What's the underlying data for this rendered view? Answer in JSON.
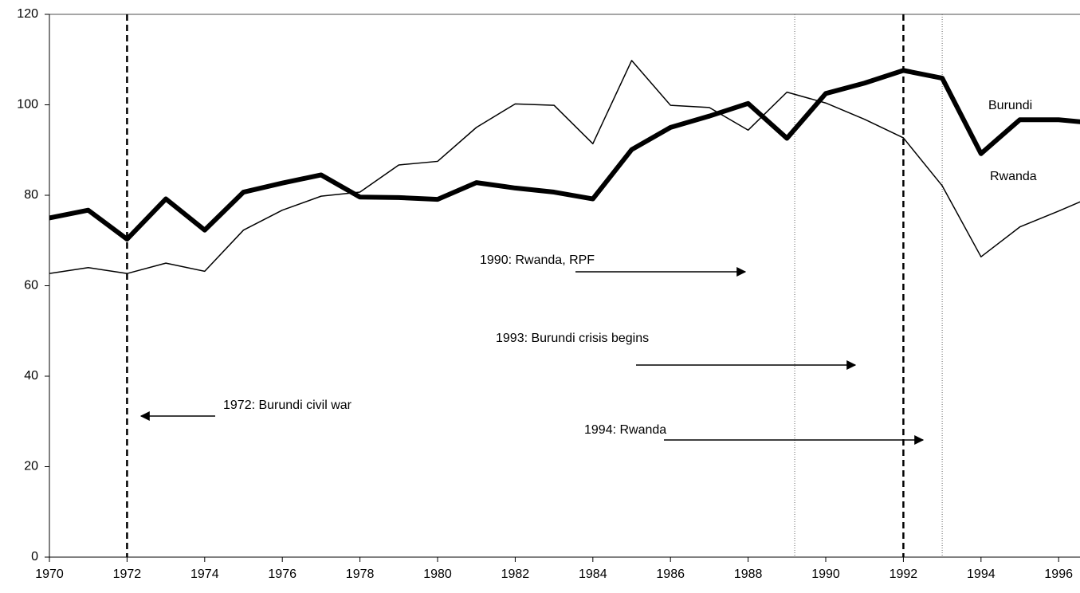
{
  "chart_data": {
    "type": "line",
    "x": [
      1970,
      1971,
      1972,
      1973,
      1974,
      1975,
      1976,
      1977,
      1978,
      1979,
      1980,
      1981,
      1982,
      1983,
      1984,
      1985,
      1986,
      1987,
      1988,
      1989,
      1990,
      1991,
      1992,
      1993,
      1994,
      1995,
      1996,
      1997
    ],
    "series": [
      {
        "name": "Burundi",
        "color": "#000000",
        "values": [
          75,
          76.7,
          70.3,
          79.2,
          72.3,
          80.7,
          82.7,
          84.5,
          79.6,
          79.5,
          79.1,
          82.8,
          81.6,
          80.7,
          79.2,
          90.1,
          95,
          97.5,
          100.3,
          92.6,
          102.5,
          104.8,
          107.6,
          105.9,
          89.2,
          96.7,
          96.7,
          95.9
        ]
      },
      {
        "name": "Rwanda",
        "color": "#000000",
        "values": [
          62.7,
          64,
          62.7,
          65,
          63.2,
          72.3,
          76.7,
          79.8,
          80.7,
          86.7,
          87.5,
          95,
          100.2,
          99.9,
          91.4,
          109.8,
          99.9,
          99.4,
          94.4,
          102.8,
          100.4,
          96.8,
          92.7,
          82.1,
          66.4,
          73,
          76.5,
          80.2
        ]
      }
    ],
    "xlim": [
      1970,
      1996.55
    ],
    "xticks": [
      1970,
      1972,
      1974,
      1976,
      1978,
      1980,
      1982,
      1984,
      1986,
      1988,
      1990,
      1992,
      1994,
      1996
    ],
    "ylim": [
      0,
      120
    ],
    "yticks": [
      0,
      20,
      40,
      60,
      80,
      100,
      120
    ],
    "grid": false,
    "reference_lines": [
      {
        "x": 1972,
        "style": "dashed"
      },
      {
        "x": 1989.2,
        "style": "dotted"
      },
      {
        "x": 1992,
        "style": "dashed"
      },
      {
        "x": 1993,
        "style": "dotted"
      }
    ],
    "annotations": [
      {
        "text": "1990: Rwanda, RPF"
      },
      {
        "text": "1993: Burundi crisis begins"
      },
      {
        "text": "1972: Burundi civil war"
      },
      {
        "text": "1994: Rwanda"
      }
    ]
  }
}
